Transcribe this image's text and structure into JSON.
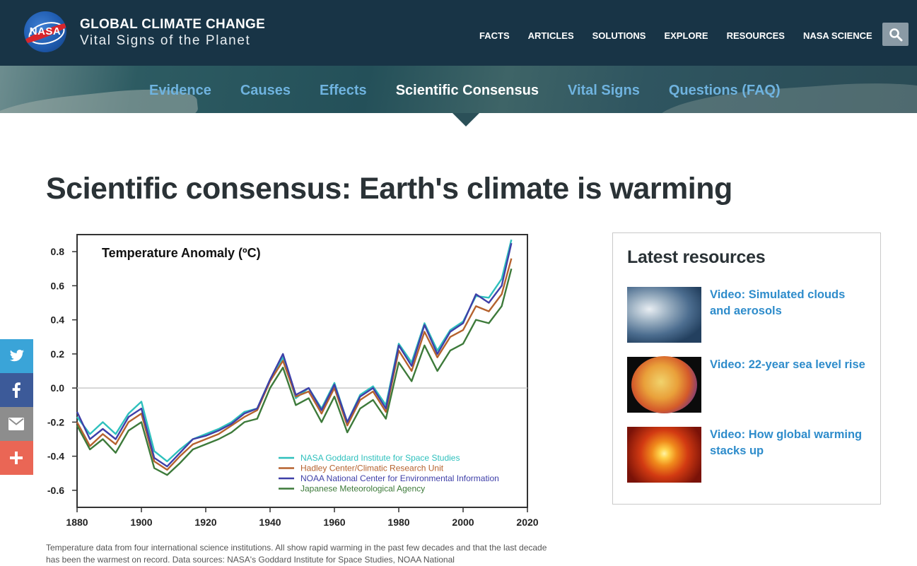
{
  "header": {
    "logo_text": "NASA",
    "site_title": "GLOBAL CLIMATE CHANGE",
    "site_subtitle": "Vital Signs of the Planet",
    "nav": [
      "FACTS",
      "ARTICLES",
      "SOLUTIONS",
      "EXPLORE",
      "RESOURCES",
      "NASA SCIENCE"
    ]
  },
  "subnav": {
    "items": [
      "Evidence",
      "Causes",
      "Effects",
      "Scientific Consensus",
      "Vital Signs",
      "Questions (FAQ)"
    ],
    "active": "Scientific Consensus"
  },
  "page": {
    "title": "Scientific consensus: Earth's climate is warming",
    "caption": "Temperature data from four international science institutions. All show rapid warming in the past few decades and that the last decade has been the warmest on record. Data sources: NASA's Goddard Institute for Space Studies, NOAA National"
  },
  "social": [
    {
      "name": "twitter",
      "color": "#3aa4d8"
    },
    {
      "name": "facebook",
      "color": "#3c5a99"
    },
    {
      "name": "email",
      "color": "#8d8d8d"
    },
    {
      "name": "more",
      "color": "#ea6655"
    }
  ],
  "resources": {
    "heading": "Latest resources",
    "items": [
      {
        "title": "Video: Simulated clouds and aerosols"
      },
      {
        "title": "Video: 22-year sea level rise"
      },
      {
        "title": "Video: How global warming stacks up"
      }
    ]
  },
  "colors": {
    "header_bg": "#183446",
    "accent_link": "#2e8ccb",
    "subnav_link": "#6fb3df"
  },
  "chart_data": {
    "type": "line",
    "title": "Temperature Anomaly (ºC)",
    "xlabel": "",
    "ylabel": "",
    "xlim": [
      1880,
      2020
    ],
    "ylim": [
      -0.7,
      0.9
    ],
    "xticks": [
      1880,
      1900,
      1920,
      1940,
      1960,
      1980,
      2000,
      2020
    ],
    "yticks": [
      "0.8",
      "0.6",
      "0.4",
      "0.2",
      "0.0",
      "-0.2",
      "-0.4",
      "-0.6"
    ],
    "zero_line": true,
    "legend_position": "bottom-right",
    "x": [
      1880,
      1884,
      1888,
      1892,
      1896,
      1900,
      1904,
      1908,
      1912,
      1916,
      1920,
      1924,
      1928,
      1932,
      1936,
      1940,
      1944,
      1948,
      1952,
      1956,
      1960,
      1964,
      1968,
      1972,
      1976,
      1980,
      1984,
      1988,
      1992,
      1996,
      2000,
      2004,
      2008,
      2012,
      2015
    ],
    "series": [
      {
        "name": "NASA Goddard Institute for Space Studies",
        "color": "#2ec0bd",
        "values": [
          -0.17,
          -0.27,
          -0.2,
          -0.27,
          -0.15,
          -0.08,
          -0.37,
          -0.43,
          -0.36,
          -0.3,
          -0.27,
          -0.24,
          -0.2,
          -0.14,
          -0.12,
          0.05,
          0.18,
          -0.06,
          0.0,
          -0.12,
          0.03,
          -0.2,
          -0.04,
          0.01,
          -0.1,
          0.26,
          0.15,
          0.38,
          0.22,
          0.34,
          0.39,
          0.54,
          0.53,
          0.64,
          0.87
        ]
      },
      {
        "name": "Hadley Center/Climatic Research Unit",
        "color": "#b5622e",
        "values": [
          -0.2,
          -0.34,
          -0.27,
          -0.33,
          -0.2,
          -0.15,
          -0.43,
          -0.48,
          -0.4,
          -0.33,
          -0.3,
          -0.27,
          -0.22,
          -0.17,
          -0.13,
          0.04,
          0.16,
          -0.05,
          -0.02,
          -0.15,
          0.0,
          -0.22,
          -0.07,
          -0.02,
          -0.14,
          0.22,
          0.1,
          0.33,
          0.18,
          0.3,
          0.34,
          0.48,
          0.45,
          0.55,
          0.76
        ]
      },
      {
        "name": "NOAA National Center for Environmental Information",
        "color": "#3e3fa8",
        "values": [
          -0.14,
          -0.3,
          -0.24,
          -0.3,
          -0.17,
          -0.12,
          -0.41,
          -0.46,
          -0.38,
          -0.3,
          -0.28,
          -0.25,
          -0.21,
          -0.15,
          -0.12,
          0.05,
          0.2,
          -0.04,
          0.0,
          -0.13,
          0.02,
          -0.2,
          -0.05,
          0.0,
          -0.12,
          0.25,
          0.13,
          0.37,
          0.2,
          0.33,
          0.38,
          0.55,
          0.5,
          0.6,
          0.85
        ]
      },
      {
        "name": "Japanese Meteorological Agency",
        "color": "#3d7a3a",
        "values": [
          -0.22,
          -0.36,
          -0.3,
          -0.38,
          -0.25,
          -0.2,
          -0.47,
          -0.51,
          -0.44,
          -0.36,
          -0.33,
          -0.3,
          -0.26,
          -0.2,
          -0.18,
          0.0,
          0.12,
          -0.1,
          -0.06,
          -0.2,
          -0.05,
          -0.26,
          -0.12,
          -0.07,
          -0.18,
          0.15,
          0.04,
          0.25,
          0.1,
          0.22,
          0.26,
          0.4,
          0.38,
          0.48,
          0.7
        ]
      }
    ]
  }
}
